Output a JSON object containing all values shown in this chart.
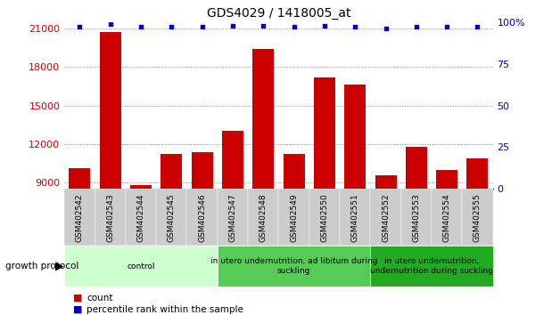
{
  "title": "GDS4029 / 1418005_at",
  "categories": [
    "GSM402542",
    "GSM402543",
    "GSM402544",
    "GSM402545",
    "GSM402546",
    "GSM402547",
    "GSM402548",
    "GSM402549",
    "GSM402550",
    "GSM402551",
    "GSM402552",
    "GSM402553",
    "GSM402554",
    "GSM402555"
  ],
  "counts": [
    10100,
    20700,
    8800,
    11200,
    11400,
    13000,
    19400,
    11200,
    17200,
    16600,
    9600,
    11800,
    10000,
    10900
  ],
  "percentiles": [
    97,
    99,
    97,
    97,
    97,
    98,
    98,
    97,
    98,
    97,
    96,
    97,
    97,
    97
  ],
  "ylim_left": [
    8500,
    21500
  ],
  "ylim_right": [
    0,
    100
  ],
  "yticks_left": [
    9000,
    12000,
    15000,
    18000,
    21000
  ],
  "yticks_right": [
    0,
    25,
    50,
    75,
    100
  ],
  "bar_color": "#cc0000",
  "scatter_color": "#0000cc",
  "grid_color": "#888888",
  "background_color": "#ffffff",
  "groups": [
    {
      "label": "control",
      "start": 0,
      "end": 5,
      "color": "#ccffcc"
    },
    {
      "label": "in utero undernutrition, ad libitum during\nsuckling",
      "start": 5,
      "end": 10,
      "color": "#55cc55"
    },
    {
      "label": "in utero undernutrition,\nundernutrition during suckling",
      "start": 10,
      "end": 14,
      "color": "#22aa22"
    }
  ],
  "legend_items": [
    {
      "label": "count",
      "color": "#cc0000"
    },
    {
      "label": "percentile rank within the sample",
      "color": "#0000cc"
    }
  ],
  "growth_protocol_label": "growth protocol",
  "left_tick_color": "#cc0000",
  "right_tick_color": "#0000cc",
  "xtick_bg_color": "#cccccc",
  "bar_bottom": 8500
}
